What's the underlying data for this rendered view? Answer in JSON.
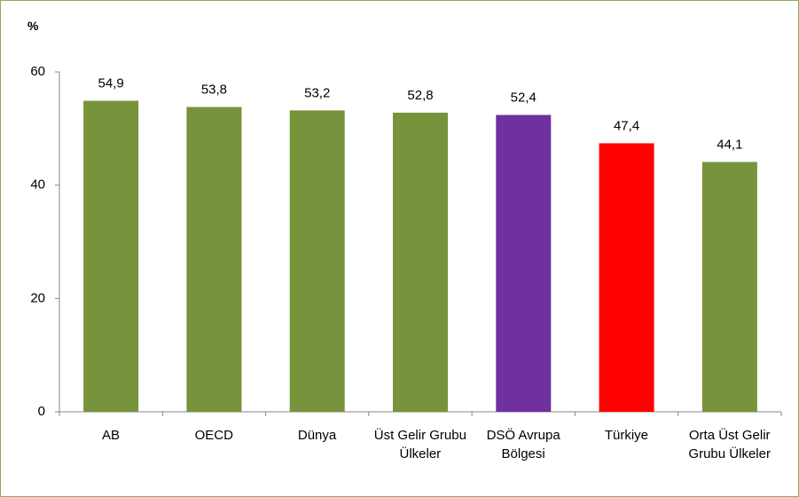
{
  "chart_data": {
    "type": "bar",
    "y_label": "%",
    "categories": [
      "AB",
      "OECD",
      "Dünya",
      "Üst Gelir Grubu Ülkeler",
      "DSÖ Avrupa Bölgesi",
      "Türkiye",
      "Orta Üst Gelir Grubu Ülkeler"
    ],
    "values": [
      54.9,
      53.8,
      53.2,
      52.8,
      52.4,
      47.4,
      44.1
    ],
    "value_labels": [
      "54,9",
      "53,8",
      "53,2",
      "52,8",
      "52,4",
      "47,4",
      "44,1"
    ],
    "colors": [
      "#77933c",
      "#77933c",
      "#77933c",
      "#77933c",
      "#7030a0",
      "#ff0000",
      "#77933c"
    ],
    "ylim": [
      0,
      60
    ],
    "yticks": [
      0,
      20,
      40,
      60
    ],
    "grid": false
  }
}
